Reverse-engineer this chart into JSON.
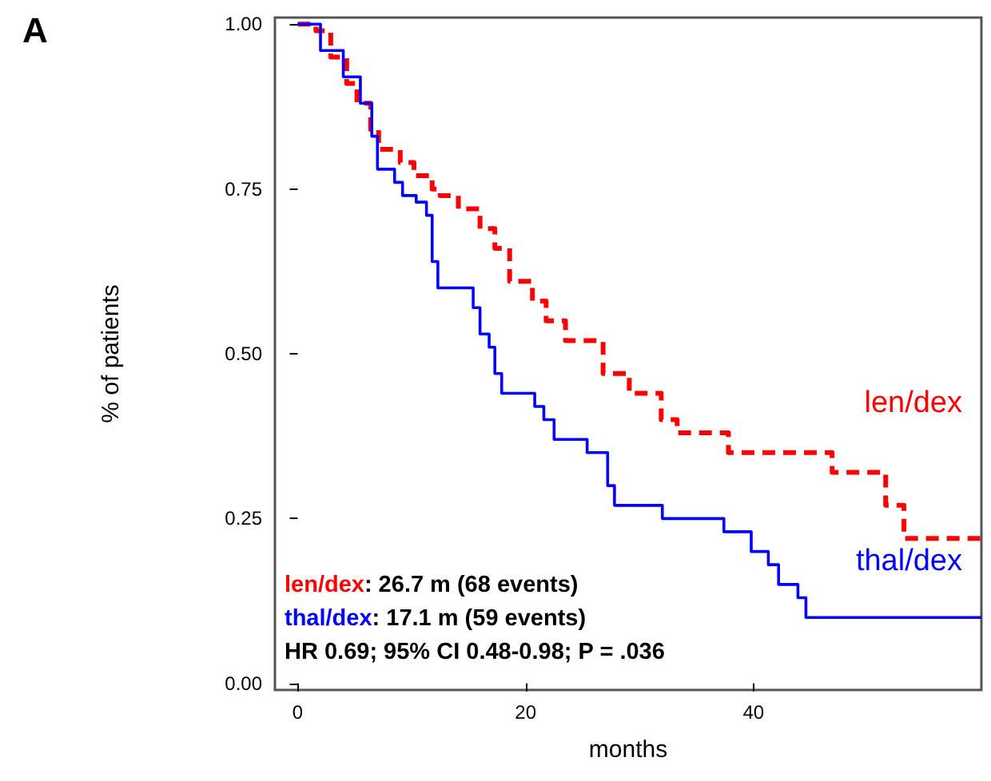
{
  "chart_data": {
    "type": "step",
    "xlabel": "months",
    "ylabel": "% of patients",
    "annotations": [
      "A",
      "len/dex: 26.7 m (68 events)",
      "thal/dex: 17.1 m (59 events)",
      "HR 0.69; 95% CI 0.48-0.98; P = .036"
    ],
    "xlim": [
      -2,
      60
    ],
    "xticks": [
      0,
      20,
      40
    ],
    "ylim": [
      -0.01,
      1.01
    ],
    "yticks": [
      {
        "value": 0,
        "label": "0.00"
      },
      {
        "value": 0.25,
        "label": "0.25"
      },
      {
        "value": 0.5,
        "label": "0.50"
      },
      {
        "value": 0.75,
        "label": "0.75"
      },
      {
        "value": 1,
        "label": "1.00"
      }
    ],
    "grid": false,
    "legend": false,
    "series": [
      {
        "name": "len/dex",
        "color": "#ff0000",
        "line_style": "dashed",
        "x": [
          0,
          1.6,
          2.9,
          4.3,
          5.2,
          6.4,
          7.1,
          9.0,
          10.2,
          11.8,
          12.5,
          14.1,
          16.0,
          17.3,
          18.6,
          20.6,
          21.8,
          23.5,
          26.8,
          29.1,
          31.9,
          33.3,
          37.8,
          46.9,
          51.6,
          53.2,
          60
        ],
        "values": [
          1.0,
          0.99,
          0.95,
          0.91,
          0.88,
          0.84,
          0.81,
          0.79,
          0.77,
          0.75,
          0.74,
          0.72,
          0.69,
          0.66,
          0.61,
          0.58,
          0.55,
          0.52,
          0.47,
          0.44,
          0.4,
          0.38,
          0.35,
          0.32,
          0.27,
          0.22,
          0.22
        ]
      },
      {
        "name": "thal/dex",
        "color": "#0000ff",
        "line_style": "solid",
        "x": [
          0,
          2.0,
          4.0,
          5.5,
          6.5,
          7.0,
          7.4,
          8.5,
          9.2,
          10.4,
          11.3,
          11.8,
          12.3,
          15.4,
          16.0,
          16.8,
          17.3,
          17.9,
          20.8,
          21.6,
          22.5,
          25.4,
          27.2,
          27.8,
          32.0,
          37.4,
          39.8,
          41.3,
          42.2,
          43.9,
          44.6,
          60
        ],
        "values": [
          1.0,
          0.96,
          0.92,
          0.88,
          0.83,
          0.78,
          0.78,
          0.76,
          0.74,
          0.73,
          0.71,
          0.64,
          0.6,
          0.57,
          0.53,
          0.51,
          0.47,
          0.44,
          0.42,
          0.4,
          0.37,
          0.35,
          0.3,
          0.27,
          0.25,
          0.23,
          0.2,
          0.18,
          0.15,
          0.13,
          0.1,
          0.1
        ]
      }
    ]
  }
}
